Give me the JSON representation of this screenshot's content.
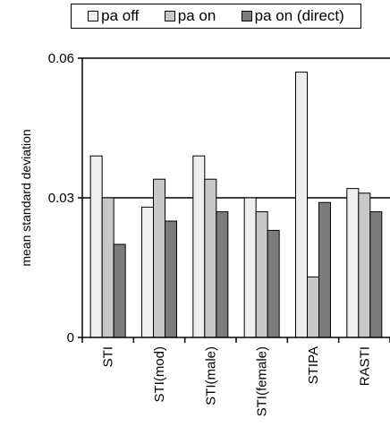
{
  "chart_data": {
    "type": "bar",
    "categories": [
      "STI",
      "STI(mod)",
      "STI(male)",
      "STI(female)",
      "STIPA",
      "RASTI"
    ],
    "series": [
      {
        "name": "pa off",
        "color": "#eeeeee",
        "values": [
          0.039,
          0.028,
          0.039,
          0.03,
          0.057,
          0.032
        ]
      },
      {
        "name": "pa on",
        "color": "#c8c8c8",
        "values": [
          0.03,
          0.034,
          0.034,
          0.027,
          0.013,
          0.031
        ]
      },
      {
        "name": "pa on (direct)",
        "color": "#7c7c7c",
        "values": [
          0.02,
          0.025,
          0.027,
          0.023,
          0.029,
          0.027
        ]
      }
    ],
    "ylabel": "mean standard deviation",
    "xlabel": "",
    "ylim": [
      0,
      0.06
    ],
    "yticks": [
      "0",
      "0.03",
      "0.06"
    ],
    "ytick_values": [
      0,
      0.03,
      0.06
    ],
    "gridlines": [
      0.03,
      0.06
    ],
    "legend_position": "top"
  }
}
